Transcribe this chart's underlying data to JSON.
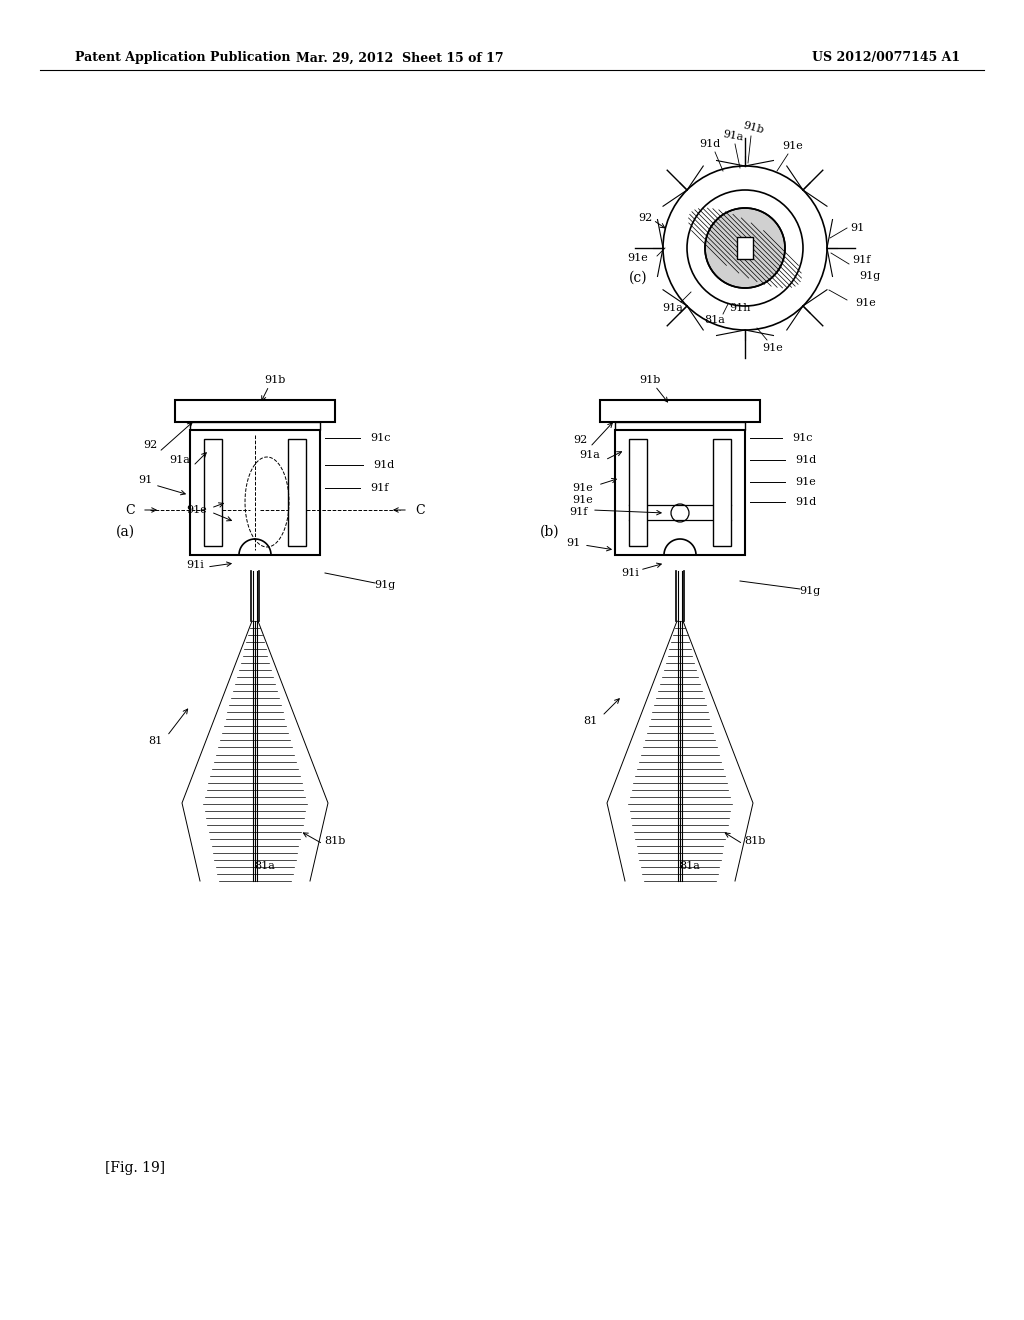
{
  "bg_color": "#ffffff",
  "header_left": "Patent Application Publication",
  "header_mid": "Mar. 29, 2012  Sheet 15 of 17",
  "header_right": "US 2012/0077145 A1",
  "footer_label": "[Fig. 19]",
  "text_color": "#000000",
  "fig_width": 10.24,
  "fig_height": 13.2,
  "dpi": 100
}
